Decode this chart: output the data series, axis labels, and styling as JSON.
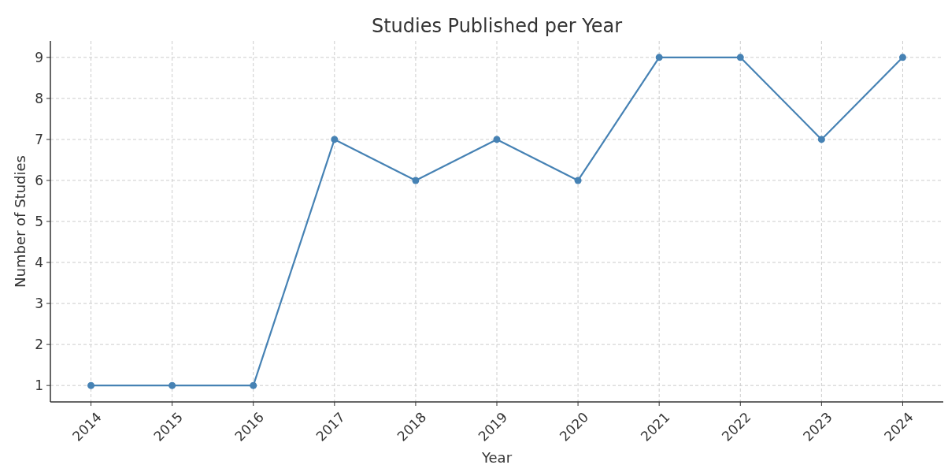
{
  "chart_data": {
    "type": "line",
    "title": "Studies Published per Year",
    "xlabel": "Year",
    "ylabel": "Number of Studies",
    "x": [
      2014,
      2015,
      2016,
      2017,
      2018,
      2019,
      2020,
      2021,
      2022,
      2023,
      2024
    ],
    "series": [
      {
        "color": "#4682b4",
        "values": [
          1,
          1,
          1,
          7,
          6,
          7,
          6,
          9,
          9,
          7,
          9
        ]
      }
    ],
    "xlim": [
      2013.5,
      2024.5
    ],
    "xticks": [
      2014,
      2015,
      2016,
      2017,
      2018,
      2019,
      2020,
      2021,
      2022,
      2023,
      2024
    ],
    "ylim": [
      0.6,
      9.4
    ],
    "yticks": [
      1,
      2,
      3,
      4,
      5,
      6,
      7,
      8,
      9
    ],
    "grid": true,
    "marker": "circle",
    "line_style": "solid"
  }
}
